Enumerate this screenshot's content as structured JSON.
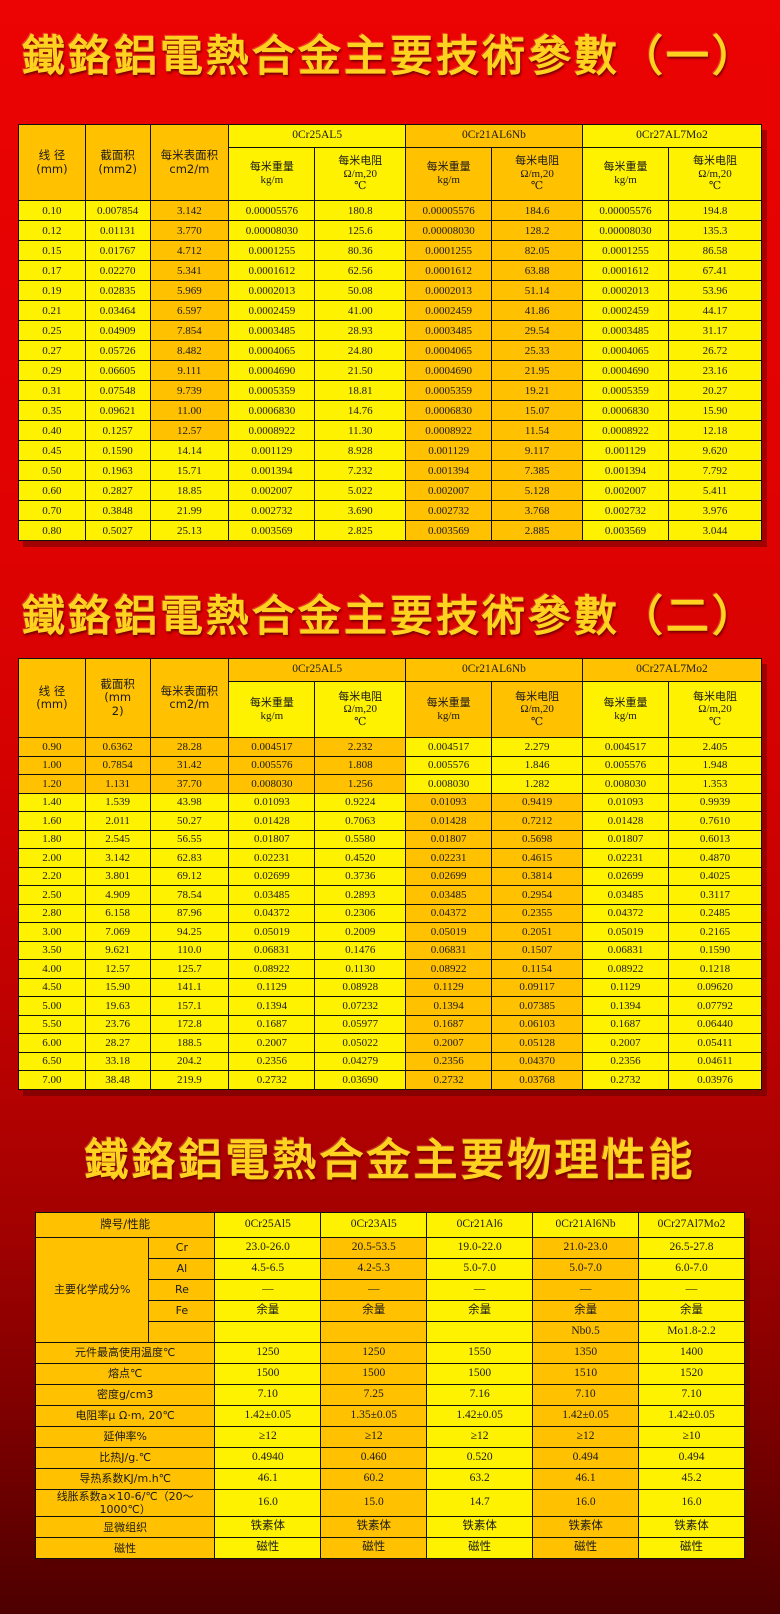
{
  "colors": {
    "cell_yellow": "#fff200",
    "cell_orange": "#ffc100",
    "title_gold": "#ffd21f",
    "bg_red_top": "#ec0303",
    "bg_red_bottom": "#4d0000"
  },
  "titles": {
    "tech1": "鐵鉻鋁電熱合金主要技術參數（一）",
    "tech2": "鐵鉻鋁電熱合金主要技術參數（二）",
    "physics": "鐵鉻鋁電熱合金主要物理性能"
  },
  "tech_table_1": {
    "diameter_header": "线 径\n(mm)",
    "area_header": "截面积\n(mm2)",
    "surface_header": "每米表面积\ncm2/m",
    "groups": [
      "0Cr25AL5",
      "0Cr21AL6Nb",
      "0Cr27AL7Mo2"
    ],
    "weight_header": "每米重量\nkg/m",
    "resistance_header": "每米电阻\nΩ/m,20\n℃",
    "rows": [
      [
        "0.10",
        "0.007854",
        "3.142",
        "0.00005576",
        "180.8",
        "0.00005576",
        "184.6",
        "0.00005576",
        "194.8"
      ],
      [
        "0.12",
        "0.01131",
        "3.770",
        "0.00008030",
        "125.6",
        "0.00008030",
        "128.2",
        "0.00008030",
        "135.3"
      ],
      [
        "0.15",
        "0.01767",
        "4.712",
        "0.0001255",
        "80.36",
        "0.0001255",
        "82.05",
        "0.0001255",
        "86.58"
      ],
      [
        "0.17",
        "0.02270",
        "5.341",
        "0.0001612",
        "62.56",
        "0.0001612",
        "63.88",
        "0.0001612",
        "67.41"
      ],
      [
        "0.19",
        "0.02835",
        "5.969",
        "0.0002013",
        "50.08",
        "0.0002013",
        "51.14",
        "0.0002013",
        "53.96"
      ],
      [
        "0.21",
        "0.03464",
        "6.597",
        "0.0002459",
        "41.00",
        "0.0002459",
        "41.86",
        "0.0002459",
        "44.17"
      ],
      [
        "0.25",
        "0.04909",
        "7.854",
        "0.0003485",
        "28.93",
        "0.0003485",
        "29.54",
        "0.0003485",
        "31.17"
      ],
      [
        "0.27",
        "0.05726",
        "8.482",
        "0.0004065",
        "24.80",
        "0.0004065",
        "25.33",
        "0.0004065",
        "26.72"
      ],
      [
        "0.29",
        "0.06605",
        "9.111",
        "0.0004690",
        "21.50",
        "0.0004690",
        "21.95",
        "0.0004690",
        "23.16"
      ],
      [
        "0.31",
        "0.07548",
        "9.739",
        "0.0005359",
        "18.81",
        "0.0005359",
        "19.21",
        "0.0005359",
        "20.27"
      ],
      [
        "0.35",
        "0.09621",
        "11.00",
        "0.0006830",
        "14.76",
        "0.0006830",
        "15.07",
        "0.0006830",
        "15.90"
      ],
      [
        "0.40",
        "0.1257",
        "12.57",
        "0.0008922",
        "11.30",
        "0.0008922",
        "11.54",
        "0.0008922",
        "12.18"
      ],
      [
        "0.45",
        "0.1590",
        "14.14",
        "0.001129",
        "8.928",
        "0.001129",
        "9.117",
        "0.001129",
        "9.620"
      ],
      [
        "0.50",
        "0.1963",
        "15.71",
        "0.001394",
        "7.232",
        "0.001394",
        "7.385",
        "0.001394",
        "7.792"
      ],
      [
        "0.60",
        "0.2827",
        "18.85",
        "0.002007",
        "5.022",
        "0.002007",
        "5.128",
        "0.002007",
        "5.411"
      ],
      [
        "0.70",
        "0.3848",
        "21.99",
        "0.002732",
        "3.690",
        "0.002732",
        "3.768",
        "0.002732",
        "3.976"
      ],
      [
        "0.80",
        "0.5027",
        "25.13",
        "0.003569",
        "2.825",
        "0.003569",
        "2.885",
        "0.003569",
        "3.044"
      ]
    ]
  },
  "tech_table_2": {
    "diameter_header": "线 径\n(mm)",
    "area_header": "截面积\n(mm\n2)",
    "surface_header": "每米表面积\ncm2/m",
    "groups": [
      "0Cr25AL5",
      "0Cr21AL6Nb",
      "0Cr27AL7Mo2"
    ],
    "weight_header": "每米重量\nkg/m",
    "resistance_header": "每米电阻\nΩ/m,20\n℃",
    "rows": [
      [
        "0.90",
        "0.6362",
        "28.28",
        "0.004517",
        "2.232",
        "0.004517",
        "2.279",
        "0.004517",
        "2.405"
      ],
      [
        "1.00",
        "0.7854",
        "31.42",
        "0.005576",
        "1.808",
        "0.005576",
        "1.846",
        "0.005576",
        "1.948"
      ],
      [
        "1.20",
        "1.131",
        "37.70",
        "0.008030",
        "1.256",
        "0.008030",
        "1.282",
        "0.008030",
        "1.353"
      ],
      [
        "1.40",
        "1.539",
        "43.98",
        "0.01093",
        "0.9224",
        "0.01093",
        "0.9419",
        "0.01093",
        "0.9939"
      ],
      [
        "1.60",
        "2.011",
        "50.27",
        "0.01428",
        "0.7063",
        "0.01428",
        "0.7212",
        "0.01428",
        "0.7610"
      ],
      [
        "1.80",
        "2.545",
        "56.55",
        "0.01807",
        "0.5580",
        "0.01807",
        "0.5698",
        "0.01807",
        "0.6013"
      ],
      [
        "2.00",
        "3.142",
        "62.83",
        "0.02231",
        "0.4520",
        "0.02231",
        "0.4615",
        "0.02231",
        "0.4870"
      ],
      [
        "2.20",
        "3.801",
        "69.12",
        "0.02699",
        "0.3736",
        "0.02699",
        "0.3814",
        "0.02699",
        "0.4025"
      ],
      [
        "2.50",
        "4.909",
        "78.54",
        "0.03485",
        "0.2893",
        "0.03485",
        "0.2954",
        "0.03485",
        "0.3117"
      ],
      [
        "2.80",
        "6.158",
        "87.96",
        "0.04372",
        "0.2306",
        "0.04372",
        "0.2355",
        "0.04372",
        "0.2485"
      ],
      [
        "3.00",
        "7.069",
        "94.25",
        "0.05019",
        "0.2009",
        "0.05019",
        "0.2051",
        "0.05019",
        "0.2165"
      ],
      [
        "3.50",
        "9.621",
        "110.0",
        "0.06831",
        "0.1476",
        "0.06831",
        "0.1507",
        "0.06831",
        "0.1590"
      ],
      [
        "4.00",
        "12.57",
        "125.7",
        "0.08922",
        "0.1130",
        "0.08922",
        "0.1154",
        "0.08922",
        "0.1218"
      ],
      [
        "4.50",
        "15.90",
        "141.1",
        "0.1129",
        "0.08928",
        "0.1129",
        "0.09117",
        "0.1129",
        "0.09620"
      ],
      [
        "5.00",
        "19.63",
        "157.1",
        "0.1394",
        "0.07232",
        "0.1394",
        "0.07385",
        "0.1394",
        "0.07792"
      ],
      [
        "5.50",
        "23.76",
        "172.8",
        "0.1687",
        "0.05977",
        "0.1687",
        "0.06103",
        "0.1687",
        "0.06440"
      ],
      [
        "6.00",
        "28.27",
        "188.5",
        "0.2007",
        "0.05022",
        "0.2007",
        "0.05128",
        "0.2007",
        "0.05411"
      ],
      [
        "6.50",
        "33.18",
        "204.2",
        "0.2356",
        "0.04279",
        "0.2356",
        "0.04370",
        "0.2356",
        "0.04611"
      ],
      [
        "7.00",
        "38.48",
        "219.9",
        "0.2732",
        "0.03690",
        "0.2732",
        "0.03768",
        "0.2732",
        "0.03976"
      ]
    ]
  },
  "physics_table": {
    "corner_header": "牌号/性能",
    "alloys": [
      "0Cr25Al5",
      "0Cr23Al5",
      "0Cr21Al6",
      "0Cr21Al6Nb",
      "0Cr27Al7Mo2"
    ],
    "chem_group_label": "主要化学成分%",
    "chem_rows": [
      {
        "label": "Cr",
        "values": [
          "23.0-26.0",
          "20.5-53.5",
          "19.0-22.0",
          "21.0-23.0",
          "26.5-27.8"
        ]
      },
      {
        "label": "Al",
        "values": [
          "4.5-6.5",
          "4.2-5.3",
          "5.0-7.0",
          "5.0-7.0",
          "6.0-7.0"
        ]
      },
      {
        "label": "Re",
        "values": [
          "—",
          "—",
          "—",
          "—",
          "—"
        ]
      },
      {
        "label": "Fe",
        "values": [
          "余量",
          "余量",
          "余量",
          "余量",
          "余量"
        ]
      },
      {
        "label": "",
        "values": [
          "",
          "",
          "",
          "Nb0.5",
          "Mo1.8-2.2"
        ]
      }
    ],
    "prop_rows": [
      {
        "label": "元件最高使用温度℃",
        "values": [
          "1250",
          "1250",
          "1550",
          "1350",
          "1400"
        ]
      },
      {
        "label": "熔点℃",
        "values": [
          "1500",
          "1500",
          "1500",
          "1510",
          "1520"
        ]
      },
      {
        "label": "密度g/cm3",
        "values": [
          "7.10",
          "7.25",
          "7.16",
          "7.10",
          "7.10"
        ]
      },
      {
        "label": "电阻率μ Ω·m, 20℃",
        "values": [
          "1.42±0.05",
          "1.35±0.05",
          "1.42±0.05",
          "1.42±0.05",
          "1.42±0.05"
        ]
      },
      {
        "label": "延伸率%",
        "values": [
          "≥12",
          "≥12",
          "≥12",
          "≥12",
          "≥10"
        ]
      },
      {
        "label": "比热J/g.℃",
        "values": [
          "0.4940",
          "0.460",
          "0.520",
          "0.494",
          "0.494"
        ]
      },
      {
        "label": "导热系数KJ/m.h℃",
        "values": [
          "46.1",
          "60.2",
          "63.2",
          "46.1",
          "45.2"
        ]
      },
      {
        "label": "线胀系数a×10-6/℃（20～1000℃）",
        "values": [
          "16.0",
          "15.0",
          "14.7",
          "16.0",
          "16.0"
        ]
      },
      {
        "label": "显微组织",
        "values": [
          "铁素体",
          "铁素体",
          "铁素体",
          "铁素体",
          "铁素体"
        ]
      },
      {
        "label": "磁性",
        "values": [
          "磁性",
          "磁性",
          "磁性",
          "磁性",
          "磁性"
        ]
      }
    ]
  }
}
